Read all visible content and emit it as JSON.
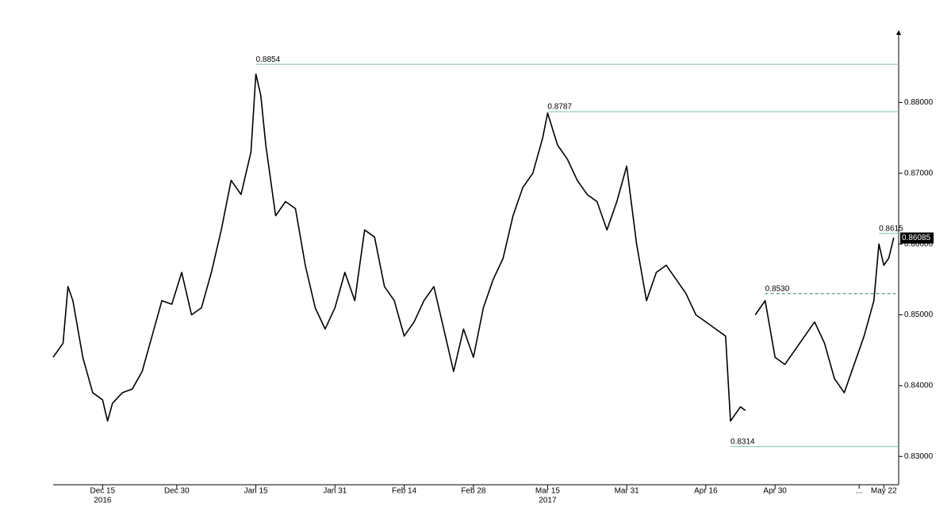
{
  "chart_data": {
    "type": "line",
    "color": "#000000",
    "line_color": "#7fbfb8",
    "x": [
      "2016-12-05",
      "2016-12-07",
      "2016-12-08",
      "2016-12-09",
      "2016-12-11",
      "2016-12-13",
      "2016-12-15",
      "2016-12-16",
      "2016-12-17",
      "2016-12-19",
      "2016-12-21",
      "2016-12-23",
      "2016-12-25",
      "2016-12-27",
      "2016-12-29",
      "2016-12-31",
      "2017-01-02",
      "2017-01-04",
      "2017-01-06",
      "2017-01-08",
      "2017-01-10",
      "2017-01-12",
      "2017-01-14",
      "2017-01-15",
      "2017-01-16",
      "2017-01-17",
      "2017-01-19",
      "2017-01-21",
      "2017-01-23",
      "2017-01-25",
      "2017-01-27",
      "2017-01-29",
      "2017-01-31",
      "2017-02-02",
      "2017-02-04",
      "2017-02-06",
      "2017-02-08",
      "2017-02-10",
      "2017-02-12",
      "2017-02-14",
      "2017-02-16",
      "2017-02-18",
      "2017-02-20",
      "2017-02-22",
      "2017-02-24",
      "2017-02-26",
      "2017-02-28",
      "2017-03-02",
      "2017-03-04",
      "2017-03-06",
      "2017-03-08",
      "2017-03-10",
      "2017-03-12",
      "2017-03-14",
      "2017-03-15",
      "2017-03-17",
      "2017-03-19",
      "2017-03-21",
      "2017-03-23",
      "2017-03-25",
      "2017-03-27",
      "2017-03-29",
      "2017-03-31",
      "2017-04-02",
      "2017-04-04",
      "2017-04-06",
      "2017-04-08",
      "2017-04-10",
      "2017-04-12",
      "2017-04-14",
      "2017-04-16",
      "2017-04-18",
      "2017-04-20",
      "2017-04-21",
      "2017-04-23",
      "2017-04-24",
      "2017-04-25",
      "2017-04-26",
      "2017-04-28",
      "2017-04-30",
      "2017-05-02",
      "2017-05-04",
      "2017-05-06",
      "2017-05-08",
      "2017-05-10",
      "2017-05-12",
      "2017-05-14",
      "2017-05-16",
      "2017-05-18",
      "2017-05-20",
      "2017-05-21",
      "2017-05-22",
      "2017-05-23",
      "2017-05-24"
    ],
    "values": [
      0.844,
      0.846,
      0.854,
      0.852,
      0.844,
      0.839,
      0.838,
      0.835,
      0.8375,
      0.839,
      0.8395,
      0.842,
      0.847,
      0.852,
      0.8515,
      0.856,
      0.85,
      0.851,
      0.856,
      0.862,
      0.869,
      0.867,
      0.873,
      0.884,
      0.881,
      0.874,
      0.864,
      0.866,
      0.865,
      0.857,
      0.851,
      0.848,
      0.851,
      0.856,
      0.852,
      0.862,
      0.861,
      0.854,
      0.852,
      0.847,
      0.849,
      0.852,
      0.854,
      0.848,
      0.842,
      0.848,
      0.844,
      0.851,
      0.855,
      0.858,
      0.864,
      0.868,
      0.87,
      0.875,
      0.8785,
      0.874,
      0.872,
      0.869,
      0.867,
      0.866,
      0.862,
      0.866,
      0.871,
      0.86,
      0.852,
      0.856,
      0.857,
      0.855,
      0.853,
      0.85,
      0.849,
      0.848,
      0.847,
      0.835,
      0.837,
      0.8365,
      null,
      0.85,
      0.852,
      0.844,
      0.843,
      0.845,
      0.847,
      0.849,
      0.846,
      0.841,
      0.839,
      0.843,
      0.847,
      0.852,
      0.86,
      0.857,
      0.858,
      0.8609
    ],
    "xlim": [
      "2016-12-05",
      "2017-05-25"
    ],
    "xticks": [
      {
        "value": "2016-12-15",
        "label": "Dec 15"
      },
      {
        "value": "2016-12-30",
        "label": "Dec 30"
      },
      {
        "value": "2017-01-15",
        "label": "Jan 15"
      },
      {
        "value": "2017-01-31",
        "label": "Jan 31"
      },
      {
        "value": "2017-02-14",
        "label": "Feb 14"
      },
      {
        "value": "2017-02-28",
        "label": "Feb 28"
      },
      {
        "value": "2017-03-15",
        "label": "Mar 15"
      },
      {
        "value": "2017-03-31",
        "label": "Mar 31"
      },
      {
        "value": "2017-04-16",
        "label": "Apr 16"
      },
      {
        "value": "2017-04-30",
        "label": "Apr 30"
      },
      {
        "value": "2017-05-17",
        "label": "..."
      },
      {
        "value": "2017-05-22",
        "label": "May 22"
      }
    ],
    "year_labels": [
      {
        "value": "2016-12-15",
        "label": "2016"
      },
      {
        "value": "2017-03-15",
        "label": "2017"
      }
    ],
    "ylim": [
      0.826,
      0.89
    ],
    "yticks": [
      {
        "value": 0.83,
        "label": "0.83000"
      },
      {
        "value": 0.84,
        "label": "0.84000"
      },
      {
        "value": 0.85,
        "label": "0.85000"
      },
      {
        "value": 0.86,
        "label": "0.86000"
      },
      {
        "value": 0.87,
        "label": "0.87000"
      },
      {
        "value": 0.88,
        "label": "0.88000"
      }
    ],
    "annotations": [
      {
        "value": 0.8854,
        "x": "2017-01-15",
        "label": "0.8854",
        "style": "solid"
      },
      {
        "value": 0.8787,
        "x": "2017-03-15",
        "label": "0.8787",
        "style": "solid"
      },
      {
        "value": 0.853,
        "x": "2017-04-28",
        "label": "0.8530",
        "style": "dashed"
      },
      {
        "value": 0.8314,
        "x": "2017-04-21",
        "label": "0.8314",
        "style": "solid"
      },
      {
        "value": 0.8615,
        "x": "2017-05-21",
        "label": "0.8615",
        "style": "solid"
      }
    ],
    "last_price": {
      "value": 0.86085,
      "label": "0.86085"
    }
  }
}
